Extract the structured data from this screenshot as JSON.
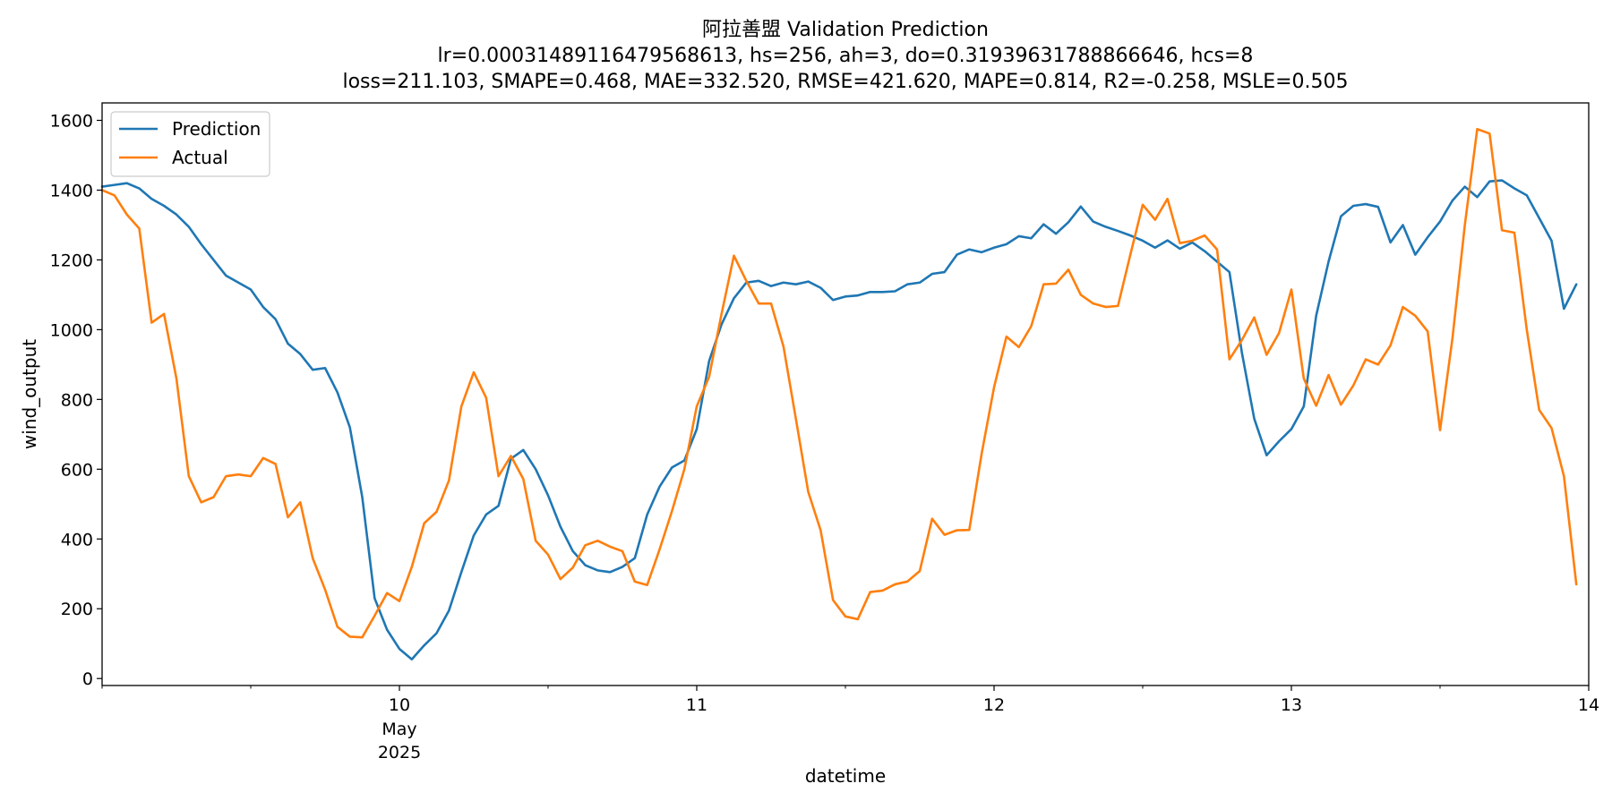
{
  "chart_data": {
    "type": "line",
    "title": [
      "阿拉善盟 Validation Prediction",
      "lr=0.00031489116479568613, hs=256, ah=3, do=0.31939631788866646, hcs=8",
      "loss=211.103, SMAPE=0.468, MAE=332.520, RMSE=421.620, MAPE=0.814, R2=-0.258, MSLE=0.505"
    ],
    "xlabel": "datetime",
    "ylabel": "wind_output",
    "x_start": "2025-05-09 00:00",
    "x_end": "2025-05-14 00:00",
    "x_step_hours": 1,
    "xlim": [
      "2025-05-09 00:00",
      "2025-05-14 00:00"
    ],
    "ylim": [
      -20,
      1650
    ],
    "y_ticks": [
      0,
      200,
      400,
      600,
      800,
      1000,
      1200,
      1400,
      1600
    ],
    "x_ticks": [
      {
        "at": "2025-05-10",
        "label": "10",
        "sub": [
          "May",
          "2025"
        ]
      },
      {
        "at": "2025-05-11",
        "label": "11",
        "sub": []
      },
      {
        "at": "2025-05-12",
        "label": "12",
        "sub": []
      },
      {
        "at": "2025-05-13",
        "label": "13",
        "sub": []
      },
      {
        "at": "2025-05-14",
        "label": "14",
        "sub": []
      }
    ],
    "grid": false,
    "legend_position": "top-left",
    "series": [
      {
        "name": "Prediction",
        "color": "#1f77b4",
        "values": [
          1410,
          1415,
          1420,
          1405,
          1375,
          1355,
          1330,
          1295,
          1245,
          1200,
          1155,
          1135,
          1115,
          1065,
          1030,
          960,
          930,
          885,
          890,
          820,
          720,
          520,
          230,
          140,
          85,
          55,
          95,
          130,
          195,
          305,
          410,
          470,
          495,
          630,
          655,
          600,
          525,
          435,
          365,
          325,
          310,
          305,
          320,
          345,
          470,
          550,
          605,
          625,
          715,
          910,
          1015,
          1090,
          1135,
          1140,
          1125,
          1135,
          1130,
          1138,
          1120,
          1085,
          1095,
          1098,
          1108,
          1108,
          1110,
          1130,
          1135,
          1160,
          1165,
          1215,
          1230,
          1222,
          1235,
          1245,
          1268,
          1262,
          1302,
          1275,
          1308,
          1353,
          1310,
          1295,
          1283,
          1270,
          1255,
          1235,
          1256,
          1232,
          1250,
          1225,
          1195,
          1165,
          935,
          745,
          640,
          680,
          715,
          780,
          1040,
          1195,
          1325,
          1355,
          1360,
          1352,
          1250,
          1300,
          1215,
          1265,
          1310,
          1370,
          1410,
          1380,
          1425,
          1428,
          1405,
          1385,
          1320,
          1255,
          1060,
          1130
        ]
      },
      {
        "name": "Actual",
        "color": "#ff7f0e",
        "values": [
          1400,
          1385,
          1330,
          1290,
          1020,
          1045,
          860,
          580,
          505,
          520,
          580,
          585,
          580,
          632,
          615,
          462,
          505,
          345,
          255,
          148,
          120,
          118,
          180,
          245,
          222,
          320,
          445,
          478,
          568,
          780,
          878,
          805,
          580,
          638,
          572,
          395,
          355,
          285,
          318,
          382,
          395,
          378,
          365,
          278,
          268,
          370,
          480,
          600,
          780,
          865,
          1045,
          1212,
          1140,
          1075,
          1075,
          952,
          745,
          535,
          425,
          225,
          178,
          170,
          248,
          252,
          270,
          278,
          308,
          458,
          412,
          425,
          426,
          645,
          835,
          980,
          950,
          1010,
          1130,
          1132,
          1172,
          1100,
          1075,
          1065,
          1068,
          1215,
          1358,
          1315,
          1375,
          1248,
          1255,
          1270,
          1230,
          915,
          970,
          1035,
          928,
          990,
          1115,
          860,
          782,
          870,
          785,
          840,
          915,
          900,
          955,
          1065,
          1040,
          995,
          712,
          975,
          1300,
          1575,
          1562,
          1285,
          1278,
          1000,
          770,
          718,
          580,
          270
        ]
      }
    ]
  }
}
